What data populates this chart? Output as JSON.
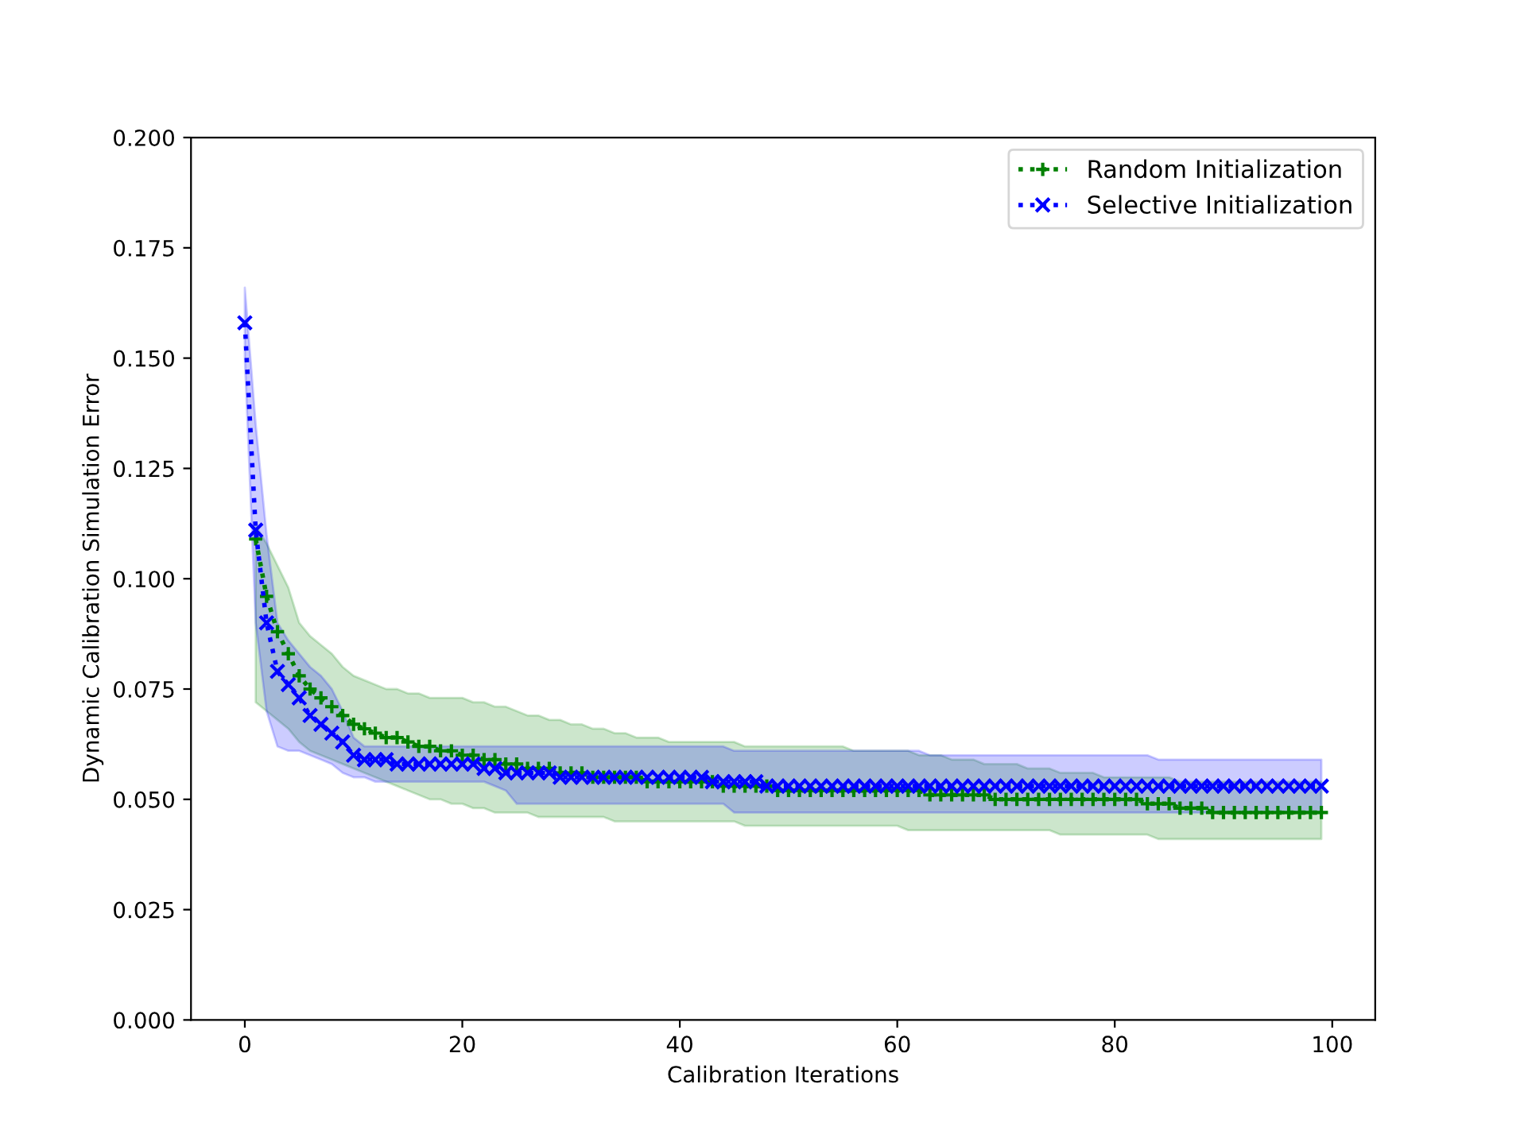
{
  "chart_data": {
    "type": "line",
    "xlabel": "Calibration Iterations",
    "ylabel": "Dynamic Calibration Simulation Error",
    "x": [
      0,
      1,
      2,
      3,
      4,
      5,
      6,
      7,
      8,
      9,
      10,
      11,
      12,
      13,
      14,
      15,
      16,
      17,
      18,
      19,
      20,
      21,
      22,
      23,
      24,
      25,
      26,
      27,
      28,
      29,
      30,
      31,
      32,
      33,
      34,
      35,
      36,
      37,
      38,
      39,
      40,
      41,
      42,
      43,
      44,
      45,
      46,
      47,
      48,
      49,
      50,
      51,
      52,
      53,
      54,
      55,
      56,
      57,
      58,
      59,
      60,
      61,
      62,
      63,
      64,
      65,
      66,
      67,
      68,
      69,
      70,
      71,
      72,
      73,
      74,
      75,
      76,
      77,
      78,
      79,
      80,
      81,
      82,
      83,
      84,
      85,
      86,
      87,
      88,
      89,
      90,
      91,
      92,
      93,
      94,
      95,
      96,
      97,
      98,
      99
    ],
    "series": [
      {
        "name": "Random Initialization",
        "color": "#008000",
        "marker": "cross",
        "line_style": "dotted",
        "values": [
          null,
          0.109,
          0.096,
          0.088,
          0.083,
          0.078,
          0.075,
          0.073,
          0.071,
          0.069,
          0.067,
          0.066,
          0.065,
          0.064,
          0.064,
          0.063,
          0.062,
          0.062,
          0.061,
          0.061,
          0.06,
          0.06,
          0.059,
          0.059,
          0.058,
          0.058,
          0.057,
          0.057,
          0.057,
          0.056,
          0.056,
          0.056,
          0.055,
          0.055,
          0.055,
          0.055,
          0.055,
          0.054,
          0.054,
          0.054,
          0.054,
          0.054,
          0.054,
          0.054,
          0.053,
          0.053,
          0.053,
          0.053,
          0.053,
          0.052,
          0.052,
          0.052,
          0.052,
          0.052,
          0.052,
          0.052,
          0.052,
          0.052,
          0.052,
          0.052,
          0.052,
          0.052,
          0.052,
          0.051,
          0.051,
          0.051,
          0.051,
          0.051,
          0.051,
          0.05,
          0.05,
          0.05,
          0.05,
          0.05,
          0.05,
          0.05,
          0.05,
          0.05,
          0.05,
          0.05,
          0.05,
          0.05,
          0.05,
          0.049,
          0.049,
          0.049,
          0.048,
          0.048,
          0.048,
          0.047,
          0.047,
          0.047,
          0.047,
          0.047,
          0.047,
          0.047,
          0.047,
          0.047,
          0.047,
          0.047
        ],
        "upper": [
          null,
          0.112,
          0.108,
          0.103,
          0.098,
          0.09,
          0.087,
          0.085,
          0.083,
          0.08,
          0.078,
          0.077,
          0.076,
          0.075,
          0.075,
          0.074,
          0.074,
          0.073,
          0.073,
          0.073,
          0.073,
          0.072,
          0.072,
          0.071,
          0.071,
          0.07,
          0.069,
          0.069,
          0.068,
          0.068,
          0.067,
          0.067,
          0.066,
          0.066,
          0.065,
          0.065,
          0.064,
          0.064,
          0.064,
          0.063,
          0.063,
          0.063,
          0.063,
          0.063,
          0.063,
          0.063,
          0.062,
          0.062,
          0.062,
          0.062,
          0.062,
          0.062,
          0.062,
          0.062,
          0.062,
          0.062,
          0.061,
          0.061,
          0.061,
          0.061,
          0.061,
          0.061,
          0.06,
          0.06,
          0.06,
          0.059,
          0.059,
          0.059,
          0.058,
          0.058,
          0.058,
          0.058,
          0.057,
          0.057,
          0.057,
          0.056,
          0.056,
          0.056,
          0.056,
          0.055,
          0.055,
          0.055,
          0.055,
          0.055,
          0.055,
          0.055,
          0.054,
          0.054,
          0.054,
          0.054,
          0.054,
          0.054,
          0.054,
          0.054,
          0.054,
          0.054,
          0.054,
          0.054,
          0.054,
          0.054
        ],
        "lower": [
          null,
          0.072,
          0.07,
          0.068,
          0.066,
          0.063,
          0.061,
          0.06,
          0.059,
          0.058,
          0.057,
          0.056,
          0.055,
          0.054,
          0.053,
          0.052,
          0.051,
          0.05,
          0.05,
          0.049,
          0.049,
          0.048,
          0.048,
          0.047,
          0.047,
          0.047,
          0.047,
          0.046,
          0.046,
          0.046,
          0.046,
          0.046,
          0.046,
          0.046,
          0.045,
          0.045,
          0.045,
          0.045,
          0.045,
          0.045,
          0.045,
          0.045,
          0.045,
          0.045,
          0.045,
          0.045,
          0.044,
          0.044,
          0.044,
          0.044,
          0.044,
          0.044,
          0.044,
          0.044,
          0.044,
          0.044,
          0.044,
          0.044,
          0.044,
          0.044,
          0.044,
          0.043,
          0.043,
          0.043,
          0.043,
          0.043,
          0.043,
          0.043,
          0.043,
          0.043,
          0.043,
          0.043,
          0.043,
          0.043,
          0.043,
          0.042,
          0.042,
          0.042,
          0.042,
          0.042,
          0.042,
          0.042,
          0.042,
          0.042,
          0.041,
          0.041,
          0.041,
          0.041,
          0.041,
          0.041,
          0.041,
          0.041,
          0.041,
          0.041,
          0.041,
          0.041,
          0.041,
          0.041,
          0.041,
          0.041
        ]
      },
      {
        "name": "Selective Initialization",
        "color": "#0000ff",
        "marker": "x",
        "line_style": "dotted",
        "values": [
          0.158,
          0.111,
          0.09,
          0.079,
          0.076,
          0.073,
          0.069,
          0.067,
          0.065,
          0.063,
          0.06,
          0.059,
          0.059,
          0.059,
          0.058,
          0.058,
          0.058,
          0.058,
          0.058,
          0.058,
          0.058,
          0.058,
          0.057,
          0.057,
          0.056,
          0.056,
          0.056,
          0.056,
          0.056,
          0.055,
          0.055,
          0.055,
          0.055,
          0.055,
          0.055,
          0.055,
          0.055,
          0.055,
          0.055,
          0.055,
          0.055,
          0.055,
          0.055,
          0.054,
          0.054,
          0.054,
          0.054,
          0.054,
          0.053,
          0.053,
          0.053,
          0.053,
          0.053,
          0.053,
          0.053,
          0.053,
          0.053,
          0.053,
          0.053,
          0.053,
          0.053,
          0.053,
          0.053,
          0.053,
          0.053,
          0.053,
          0.053,
          0.053,
          0.053,
          0.053,
          0.053,
          0.053,
          0.053,
          0.053,
          0.053,
          0.053,
          0.053,
          0.053,
          0.053,
          0.053,
          0.053,
          0.053,
          0.053,
          0.053,
          0.053,
          0.053,
          0.053,
          0.053,
          0.053,
          0.053,
          0.053,
          0.053,
          0.053,
          0.053,
          0.053,
          0.053,
          0.053,
          0.053,
          0.053,
          0.053
        ],
        "upper": [
          0.166,
          0.135,
          0.11,
          0.09,
          0.086,
          0.083,
          0.08,
          0.078,
          0.075,
          0.07,
          0.064,
          0.062,
          0.062,
          0.062,
          0.062,
          0.062,
          0.062,
          0.062,
          0.062,
          0.062,
          0.062,
          0.062,
          0.062,
          0.062,
          0.062,
          0.062,
          0.062,
          0.062,
          0.062,
          0.062,
          0.062,
          0.062,
          0.062,
          0.062,
          0.062,
          0.062,
          0.062,
          0.062,
          0.062,
          0.062,
          0.062,
          0.062,
          0.062,
          0.062,
          0.062,
          0.061,
          0.061,
          0.061,
          0.061,
          0.061,
          0.061,
          0.061,
          0.061,
          0.061,
          0.061,
          0.061,
          0.061,
          0.061,
          0.061,
          0.061,
          0.061,
          0.061,
          0.061,
          0.06,
          0.06,
          0.06,
          0.06,
          0.06,
          0.06,
          0.06,
          0.06,
          0.06,
          0.06,
          0.06,
          0.06,
          0.06,
          0.06,
          0.06,
          0.06,
          0.06,
          0.06,
          0.06,
          0.06,
          0.06,
          0.059,
          0.059,
          0.059,
          0.059,
          0.059,
          0.059,
          0.059,
          0.059,
          0.059,
          0.059,
          0.059,
          0.059,
          0.059,
          0.059,
          0.059,
          0.059
        ],
        "lower": [
          0.15,
          0.09,
          0.07,
          0.062,
          0.061,
          0.061,
          0.06,
          0.059,
          0.058,
          0.056,
          0.055,
          0.055,
          0.054,
          0.054,
          0.054,
          0.054,
          0.054,
          0.054,
          0.054,
          0.054,
          0.054,
          0.054,
          0.054,
          0.053,
          0.052,
          0.049,
          0.049,
          0.049,
          0.049,
          0.049,
          0.049,
          0.049,
          0.049,
          0.049,
          0.049,
          0.049,
          0.049,
          0.049,
          0.049,
          0.049,
          0.049,
          0.049,
          0.049,
          0.049,
          0.049,
          0.047,
          0.047,
          0.047,
          0.047,
          0.047,
          0.047,
          0.047,
          0.047,
          0.047,
          0.047,
          0.047,
          0.047,
          0.047,
          0.047,
          0.047,
          0.047,
          0.047,
          0.047,
          0.047,
          0.047,
          0.047,
          0.047,
          0.047,
          0.047,
          0.047,
          0.047,
          0.047,
          0.047,
          0.047,
          0.047,
          0.047,
          0.047,
          0.047,
          0.047,
          0.047,
          0.047,
          0.047,
          0.047,
          0.047,
          0.047,
          0.047,
          0.047,
          0.047,
          0.047,
          0.047,
          0.047,
          0.047,
          0.047,
          0.047,
          0.047,
          0.047,
          0.047,
          0.047,
          0.047,
          0.047
        ]
      }
    ],
    "xlim": [
      -4.95,
      103.95
    ],
    "ylim": [
      0,
      0.2
    ],
    "xticks": [
      0,
      20,
      40,
      60,
      80,
      100
    ],
    "yticks": [
      {
        "value": 0,
        "label": "0.000"
      },
      {
        "value": 0.025,
        "label": "0.025"
      },
      {
        "value": 0.05,
        "label": "0.050"
      },
      {
        "value": 0.075,
        "label": "0.075"
      },
      {
        "value": 0.1,
        "label": "0.100"
      },
      {
        "value": 0.125,
        "label": "0.125"
      },
      {
        "value": 0.15,
        "label": "0.150"
      },
      {
        "value": 0.175,
        "label": "0.175"
      },
      {
        "value": 0.2,
        "label": "0.200"
      }
    ],
    "legend": "top right",
    "grid": false
  }
}
